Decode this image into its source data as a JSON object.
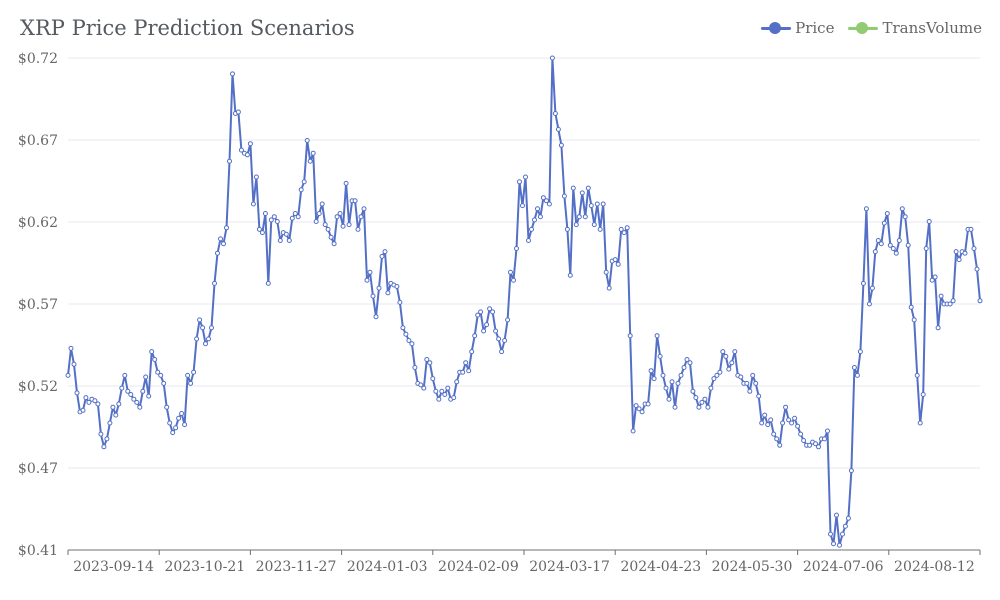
{
  "chart_data": {
    "type": "line",
    "title": "XRP Price Prediction Scenarios",
    "xlabel": "",
    "ylabel": "",
    "x_tick_labels": [
      "2023-09-14",
      "2023-10-21",
      "2023-11-27",
      "2024-01-03",
      "2024-02-09",
      "2024-03-17",
      "2024-04-23",
      "2024-05-30",
      "2024-07-06",
      "2024-08-12"
    ],
    "y_tick_labels": [
      "$0.41",
      "$0.47",
      "$0.52",
      "$0.57",
      "$0.62",
      "$0.67",
      "$0.72"
    ],
    "ylim": [
      0.41,
      0.72
    ],
    "grid": "horizontal",
    "legend_position": "top-right",
    "legend": [
      "Price",
      "TransVolume"
    ],
    "colors": {
      "Price": "#5470c6",
      "TransVolume": "#91cc75"
    },
    "series": [
      {
        "name": "Price",
        "values": [
          0.52,
          0.537,
          0.527,
          0.509,
          0.497,
          0.498,
          0.506,
          0.503,
          0.505,
          0.504,
          0.502,
          0.483,
          0.475,
          0.48,
          0.49,
          0.5,
          0.495,
          0.502,
          0.512,
          0.52,
          0.51,
          0.508,
          0.505,
          0.503,
          0.5,
          0.51,
          0.519,
          0.507,
          0.535,
          0.53,
          0.522,
          0.52,
          0.515,
          0.5,
          0.49,
          0.484,
          0.487,
          0.493,
          0.496,
          0.489,
          0.52,
          0.515,
          0.522,
          0.543,
          0.555,
          0.55,
          0.54,
          0.543,
          0.55,
          0.578,
          0.597,
          0.606,
          0.603,
          0.613,
          0.655,
          0.71,
          0.685,
          0.686,
          0.662,
          0.66,
          0.659,
          0.666,
          0.628,
          0.645,
          0.612,
          0.61,
          0.622,
          0.578,
          0.618,
          0.62,
          0.617,
          0.605,
          0.61,
          0.609,
          0.605,
          0.619,
          0.622,
          0.62,
          0.637,
          0.642,
          0.668,
          0.655,
          0.66,
          0.617,
          0.622,
          0.628,
          0.615,
          0.612,
          0.607,
          0.603,
          0.62,
          0.622,
          0.614,
          0.641,
          0.615,
          0.63,
          0.63,
          0.612,
          0.62,
          0.625,
          0.58,
          0.585,
          0.57,
          0.557,
          0.575,
          0.595,
          0.598,
          0.572,
          0.578,
          0.577,
          0.576,
          0.566,
          0.55,
          0.546,
          0.542,
          0.54,
          0.525,
          0.515,
          0.514,
          0.512,
          0.53,
          0.528,
          0.518,
          0.51,
          0.505,
          0.51,
          0.508,
          0.512,
          0.505,
          0.506,
          0.516,
          0.522,
          0.522,
          0.528,
          0.523,
          0.535,
          0.545,
          0.558,
          0.56,
          0.548,
          0.552,
          0.562,
          0.56,
          0.548,
          0.543,
          0.535,
          0.542,
          0.555,
          0.585,
          0.58,
          0.6,
          0.642,
          0.627,
          0.645,
          0.605,
          0.612,
          0.618,
          0.625,
          0.62,
          0.632,
          0.63,
          0.628,
          0.72,
          0.685,
          0.675,
          0.665,
          0.633,
          0.612,
          0.583,
          0.638,
          0.615,
          0.62,
          0.635,
          0.62,
          0.638,
          0.627,
          0.615,
          0.628,
          0.612,
          0.628,
          0.585,
          0.575,
          0.592,
          0.593,
          0.59,
          0.612,
          0.61,
          0.613,
          0.545,
          0.485,
          0.501,
          0.499,
          0.497,
          0.502,
          0.502,
          0.523,
          0.518,
          0.545,
          0.532,
          0.52,
          0.512,
          0.505,
          0.516,
          0.5,
          0.515,
          0.52,
          0.525,
          0.53,
          0.528,
          0.51,
          0.506,
          0.5,
          0.503,
          0.505,
          0.5,
          0.512,
          0.518,
          0.52,
          0.522,
          0.535,
          0.532,
          0.524,
          0.528,
          0.535,
          0.52,
          0.519,
          0.515,
          0.515,
          0.51,
          0.52,
          0.515,
          0.507,
          0.49,
          0.495,
          0.489,
          0.492,
          0.483,
          0.48,
          0.476,
          0.49,
          0.5,
          0.492,
          0.49,
          0.493,
          0.488,
          0.483,
          0.479,
          0.476,
          0.476,
          0.478,
          0.477,
          0.475,
          0.48,
          0.48,
          0.485,
          0.42,
          0.414,
          0.432,
          0.413,
          0.42,
          0.425,
          0.43,
          0.46,
          0.525,
          0.52,
          0.535,
          0.578,
          0.625,
          0.565,
          0.575,
          0.598,
          0.605,
          0.603,
          0.616,
          0.622,
          0.602,
          0.6,
          0.597,
          0.605,
          0.625,
          0.62,
          0.602,
          0.563,
          0.555,
          0.52,
          0.49,
          0.508,
          0.6,
          0.617,
          0.58,
          0.582,
          0.55,
          0.57,
          0.565,
          0.565,
          0.565,
          0.567,
          0.598,
          0.593,
          0.598,
          0.597,
          0.612,
          0.612,
          0.6,
          0.587,
          0.567
        ]
      },
      {
        "name": "TransVolume",
        "values": []
      }
    ]
  }
}
